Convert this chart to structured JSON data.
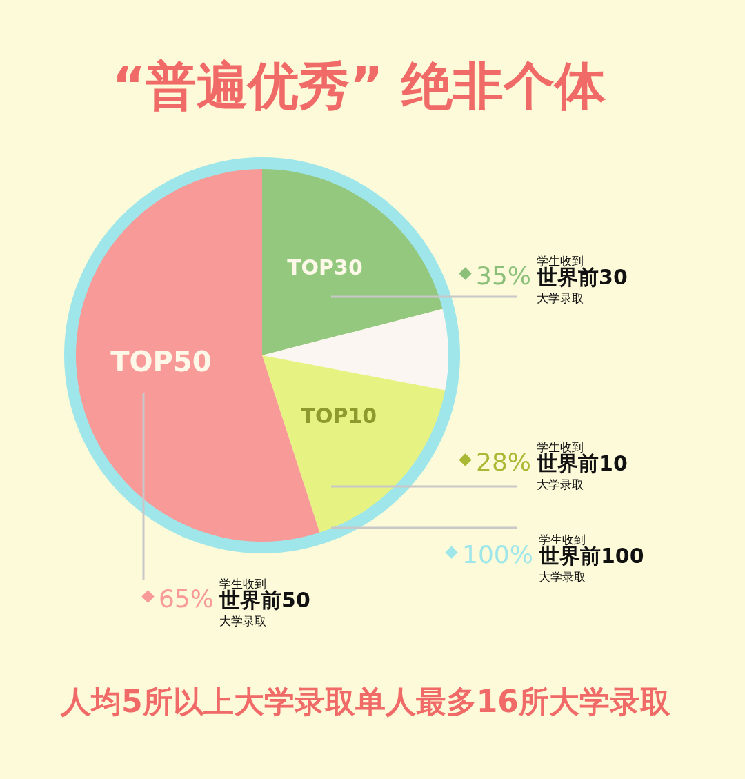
{
  "chart_data": {
    "type": "pie",
    "title": "“普遍优秀” 绝非个体",
    "categories": [
      "TOP30",
      null,
      "TOP10",
      "TOP50"
    ],
    "values": [
      21,
      7,
      17,
      55
    ],
    "colors": [
      "#93c87e",
      "#fcf6f2",
      "#e6f383",
      "#f89a98"
    ],
    "annotations": [
      "35%",
      "学生收到",
      "世界前30",
      "大学录取",
      "28%",
      "学生收到",
      "世界前10",
      "大学录取",
      "100%",
      "学生收到",
      "世界前100",
      "大学录取",
      "65%",
      "学生收到",
      "世界前50",
      "大学录取",
      "人均5所以上大学录取单人最多16所大学录取"
    ]
  }
}
